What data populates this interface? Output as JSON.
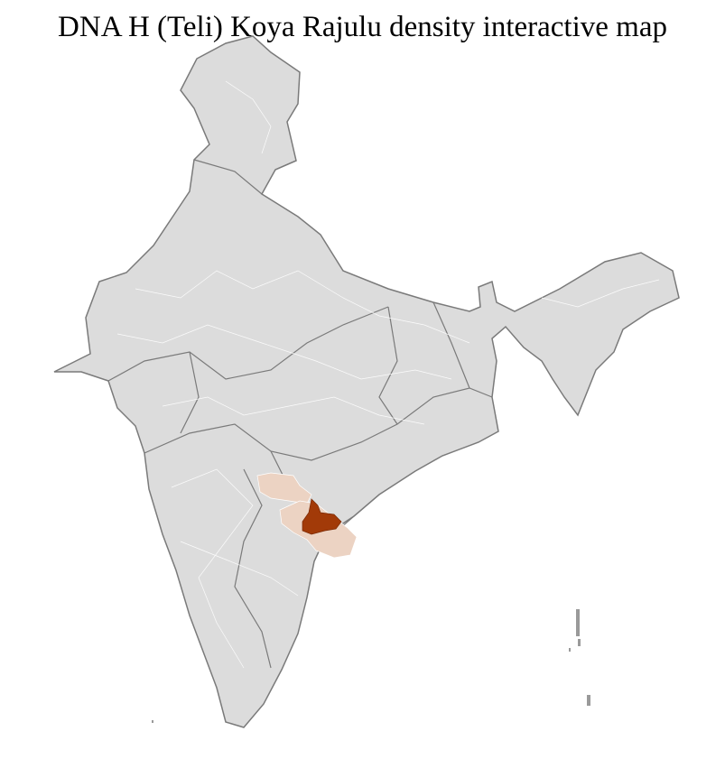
{
  "title": "DNA H (Teli) Koya Rajulu density interactive map",
  "colors": {
    "no_data": "#dcdcdc",
    "low_density": "#ecd3c3",
    "high_density": "#a23a08",
    "state_border": "#7a7a7a",
    "district_border": "#ffffff"
  }
}
